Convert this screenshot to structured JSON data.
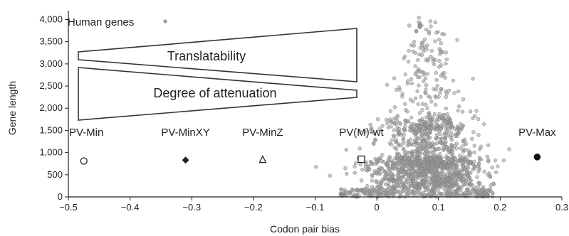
{
  "chart_data": {
    "type": "scatter",
    "xlabel": "Codon pair bias",
    "ylabel": "Gene length",
    "xlim": [
      -0.5,
      0.3
    ],
    "ylim": [
      0,
      4200
    ],
    "x_ticks": [
      "-0.5",
      "-0.4",
      "-0.3",
      "-0.2",
      "-0.1",
      "0",
      "0.1",
      "0.2",
      "0.3"
    ],
    "y_ticks": [
      "0",
      "500",
      "1,000",
      "1,500",
      "2,000",
      "2,500",
      "3,000",
      "3,500",
      "4,000"
    ],
    "legend_label": "Human genes",
    "colors": {
      "points": "#9a9a9a",
      "axis": "#222222"
    },
    "wedges": [
      {
        "label": "Translatability",
        "direction": "increasing"
      },
      {
        "label": "Degree of attenuation",
        "direction": "decreasing"
      }
    ],
    "viruses": [
      {
        "name": "PV-Min",
        "x": -0.475,
        "y": 810,
        "marker": "open-circle"
      },
      {
        "name": "PV-MinXY",
        "x": -0.31,
        "y": 830,
        "marker": "filled-diamond"
      },
      {
        "name": "PV-MinZ",
        "x": -0.185,
        "y": 840,
        "marker": "open-triangle"
      },
      {
        "name": "PV(M)-wt",
        "x": -0.025,
        "y": 850,
        "marker": "open-square"
      },
      {
        "name": "PV-Max",
        "x": 0.26,
        "y": 900,
        "marker": "filled-circle"
      }
    ],
    "human_genes_distribution": {
      "center_x": 0.08,
      "spread_x": 0.04,
      "peak_y": 4100,
      "count_shown": 1400
    }
  }
}
